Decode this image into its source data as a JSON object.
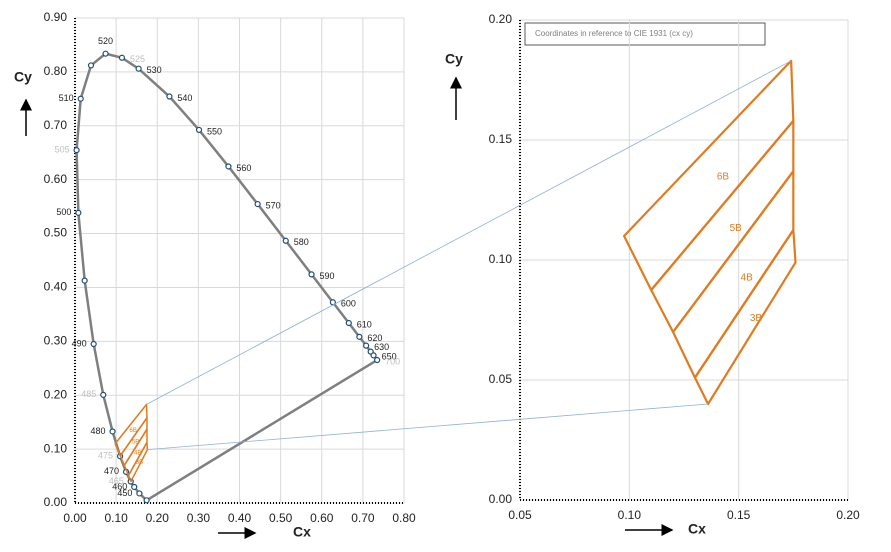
{
  "chart_data": [
    {
      "type": "line",
      "x_label": "Cx",
      "y_label": "Cy",
      "xlim": [
        0,
        0.8
      ],
      "ylim": [
        0,
        0.9
      ],
      "xticks": [
        {
          "value": 0,
          "label": "0.00"
        },
        {
          "value": 0.1,
          "label": "0.10"
        },
        {
          "value": 0.2,
          "label": "0.20"
        },
        {
          "value": 0.3,
          "label": "0.30"
        },
        {
          "value": 0.4,
          "label": "0.40"
        },
        {
          "value": 0.5,
          "label": "0.50"
        },
        {
          "value": 0.6,
          "label": "0.60"
        },
        {
          "value": 0.7,
          "label": "0.70"
        },
        {
          "value": 0.8,
          "label": "0.80"
        }
      ],
      "yticks": [
        {
          "value": 0,
          "label": "0.00"
        },
        {
          "value": 0.1,
          "label": "0.10"
        },
        {
          "value": 0.2,
          "label": "0.20"
        },
        {
          "value": 0.3,
          "label": "0.30"
        },
        {
          "value": 0.4,
          "label": "0.40"
        },
        {
          "value": 0.5,
          "label": "0.50"
        },
        {
          "value": 0.6,
          "label": "0.60"
        },
        {
          "value": 0.7,
          "label": "0.70"
        },
        {
          "value": 0.8,
          "label": "0.80"
        },
        {
          "value": 0.9,
          "label": "0.90"
        }
      ],
      "grid": true,
      "series": [
        {
          "color": "#7f7f7f",
          "marker_color": "#1f4e79",
          "x": [
            0.1741,
            0.1566,
            0.144,
            0.1355,
            0.1241,
            0.1096,
            0.0913,
            0.0687,
            0.0454,
            0.0235,
            0.0082,
            0.0039,
            0.0139,
            0.0389,
            0.0743,
            0.1142,
            0.1547,
            0.2296,
            0.3016,
            0.3731,
            0.4441,
            0.5125,
            0.5752,
            0.627,
            0.6658,
            0.6915,
            0.7079,
            0.719,
            0.726,
            0.7347
          ],
          "values": [
            0.005,
            0.0177,
            0.0297,
            0.0399,
            0.0578,
            0.0868,
            0.1327,
            0.2007,
            0.295,
            0.4127,
            0.5384,
            0.6548,
            0.7502,
            0.812,
            0.8338,
            0.8262,
            0.8059,
            0.7543,
            0.6923,
            0.6245,
            0.5547,
            0.4866,
            0.4242,
            0.3725,
            0.334,
            0.3083,
            0.292,
            0.2809,
            0.274,
            0.2653
          ],
          "point_labels": [
            null,
            450,
            460,
            465,
            470,
            475,
            480,
            485,
            490,
            null,
            500,
            505,
            510,
            null,
            520,
            525,
            530,
            540,
            550,
            560,
            570,
            580,
            590,
            600,
            610,
            620,
            630,
            null,
            650,
            700
          ],
          "faint_labels": [
            false,
            false,
            false,
            true,
            false,
            true,
            false,
            true,
            false,
            false,
            false,
            true,
            false,
            false,
            false,
            true,
            false,
            false,
            false,
            false,
            false,
            false,
            false,
            false,
            false,
            false,
            false,
            false,
            false,
            true
          ]
        }
      ]
    },
    {
      "type": "polygon",
      "x_label": "Cx",
      "y_label": "Cy",
      "annotation": "Coordinates in reference to CIE 1931 (cx cy)",
      "xlim": [
        0.05,
        0.2
      ],
      "ylim": [
        0,
        0.2
      ],
      "xticks": [
        0.05,
        {
          "value": 0.1,
          "label": "0.10"
        },
        0.15,
        {
          "value": 0.2,
          "label": "0.20"
        }
      ],
      "yticks": [
        {
          "value": 0,
          "label": "0.00"
        },
        0.05,
        {
          "value": 0.1,
          "label": "0.10"
        },
        0.15,
        {
          "value": 0.2,
          "label": "0.20"
        }
      ],
      "grid": true,
      "color": "#e07b20",
      "link_color": "#8fb0d8",
      "regions": [
        {
          "label": "6B",
          "x": [
            0.174,
            0.0976,
            0.11,
            0.175
          ],
          "y": [
            0.183,
            0.11,
            0.0875,
            0.158
          ]
        },
        {
          "label": "5B",
          "x": [
            0.11,
            0.12,
            0.175,
            0.175
          ],
          "y": [
            0.0875,
            0.07,
            0.137,
            0.158
          ]
        },
        {
          "label": "4B",
          "x": [
            0.12,
            0.13,
            0.175,
            0.175
          ],
          "y": [
            0.07,
            0.051,
            0.1125,
            0.137
          ]
        },
        {
          "label": "3B",
          "x": [
            0.13,
            0.136,
            0.176,
            0.175
          ],
          "y": [
            0.051,
            0.04,
            0.099,
            0.1125
          ]
        }
      ]
    }
  ]
}
